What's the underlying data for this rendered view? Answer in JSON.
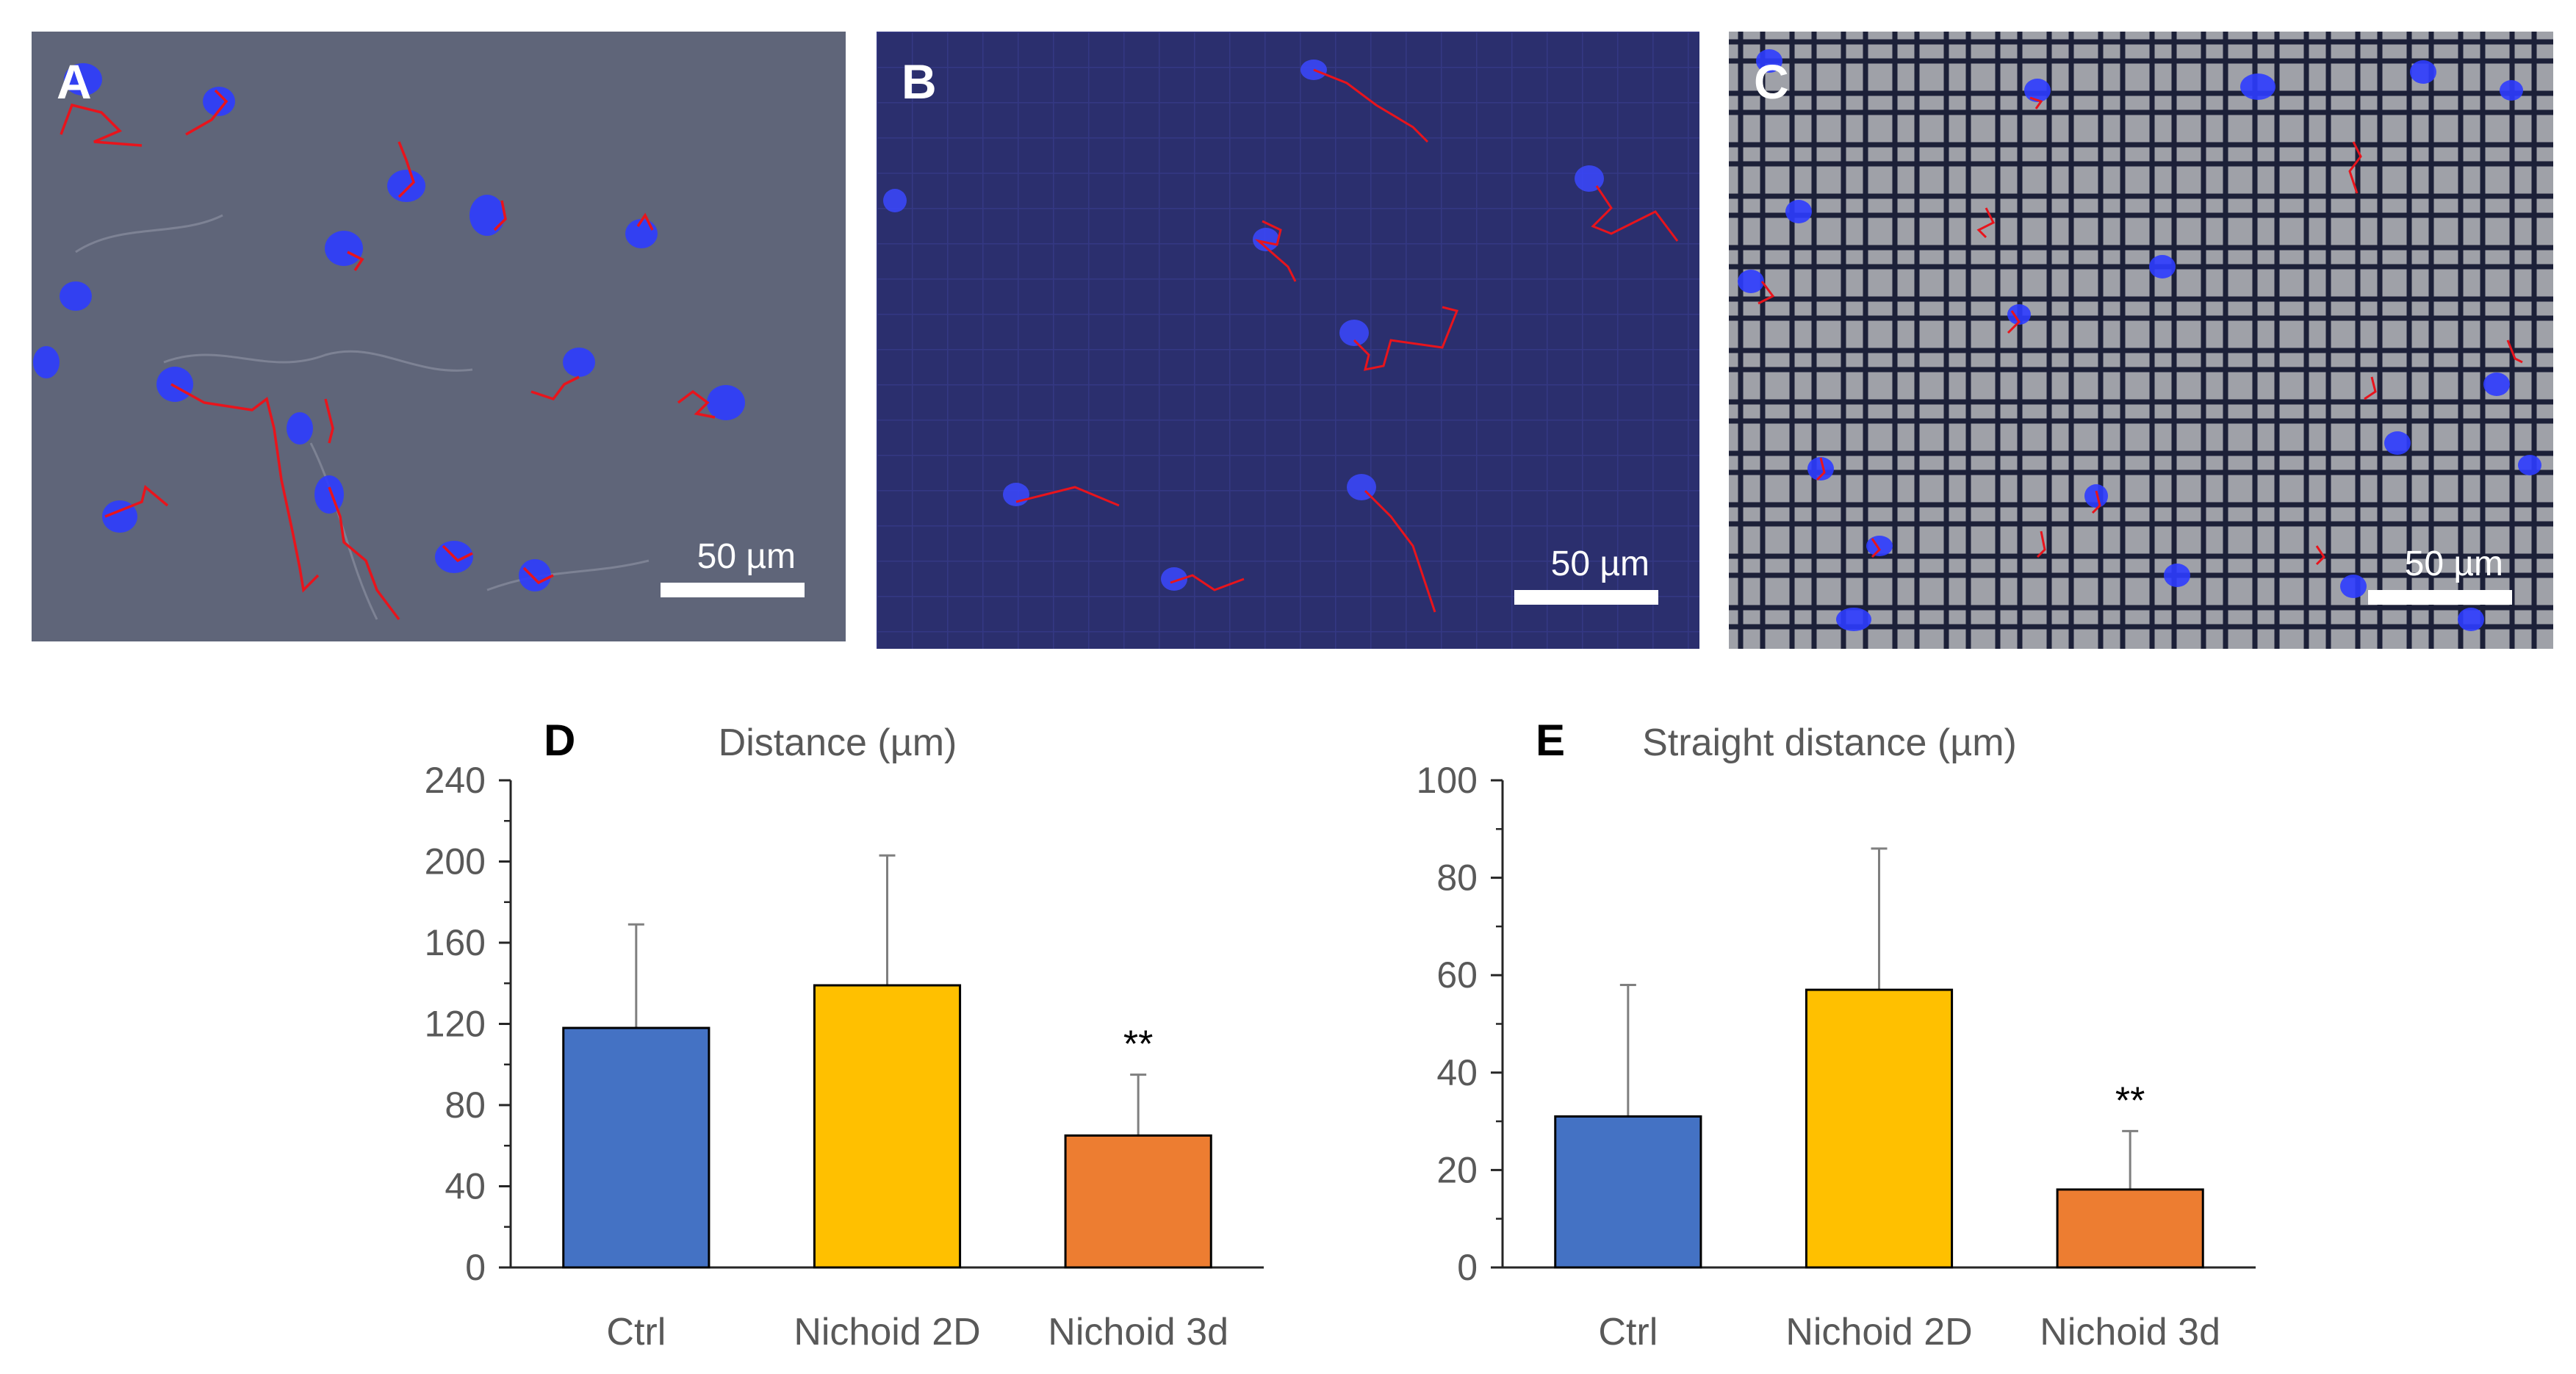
{
  "panels": [
    {
      "letter": "A",
      "scale_label": "50 µm"
    },
    {
      "letter": "B",
      "scale_label": "50 µm"
    },
    {
      "letter": "C",
      "scale_label": "50 µm"
    }
  ],
  "colors": {
    "ctrl": "#4472c4",
    "nichoid_2d": "#ffc000",
    "nichoid_3d": "#ed7d31",
    "track": "#e8141c",
    "nucleus": "#2e3cff"
  },
  "chart_data": [
    {
      "type": "bar",
      "panel": "D",
      "title": "Distance (µm)",
      "xlabel": "",
      "ylabel": "",
      "categories": [
        "Ctrl",
        "Nichoid 2D",
        "Nichoid 3d"
      ],
      "values": [
        118,
        139,
        65
      ],
      "errors": [
        51,
        64,
        30
      ],
      "annotations": [
        "",
        "",
        "**"
      ],
      "ylim": [
        0,
        240
      ],
      "yticks": [
        0,
        40,
        80,
        120,
        160,
        200,
        240
      ],
      "ytick_labels": [
        "0",
        "40",
        "80",
        "120",
        "160",
        "200",
        "240"
      ],
      "grid": false
    },
    {
      "type": "bar",
      "panel": "E",
      "title": "Straight distance (µm)",
      "xlabel": "",
      "ylabel": "",
      "categories": [
        "Ctrl",
        "Nichoid 2D",
        "Nichoid 3d"
      ],
      "values": [
        31,
        57,
        16
      ],
      "errors": [
        27,
        29,
        12
      ],
      "annotations": [
        "",
        "",
        "**"
      ],
      "ylim": [
        0,
        100
      ],
      "yticks": [
        0,
        20,
        40,
        60,
        80,
        100
      ],
      "ytick_labels": [
        "0",
        "20",
        "40",
        "60",
        "80",
        "100"
      ],
      "grid": false
    }
  ]
}
